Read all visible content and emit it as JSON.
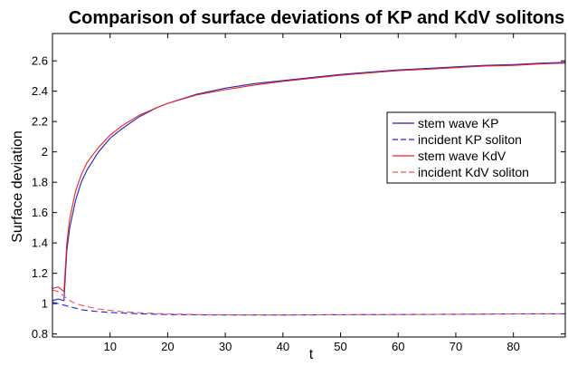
{
  "chart_data": {
    "type": "line",
    "title": "Comparison of surface deviations of KP and KdV solitons",
    "xlabel": "t",
    "ylabel": "Surface deviation",
    "xlim": [
      0,
      89
    ],
    "ylim": [
      0.78,
      2.78
    ],
    "xticks": [
      10,
      20,
      30,
      40,
      50,
      60,
      70,
      80
    ],
    "yticks": [
      0.8,
      1,
      1.2,
      1.4,
      1.6,
      1.8,
      2,
      2.2,
      2.4,
      2.6
    ],
    "grid": false,
    "legend_position": "top-right",
    "series": [
      {
        "name": "stem wave KP",
        "color": "#2222bb",
        "dash": "solid",
        "x": [
          0,
          1,
          2,
          2.5,
          3,
          4,
          5,
          6,
          8,
          10,
          12,
          15,
          18,
          20,
          25,
          30,
          35,
          40,
          45,
          50,
          55,
          60,
          65,
          70,
          75,
          80,
          85,
          89
        ],
        "y": [
          1.02,
          1.03,
          1.02,
          1.35,
          1.5,
          1.68,
          1.8,
          1.88,
          2.0,
          2.09,
          2.15,
          2.23,
          2.29,
          2.32,
          2.38,
          2.42,
          2.45,
          2.47,
          2.49,
          2.51,
          2.525,
          2.54,
          2.55,
          2.56,
          2.57,
          2.575,
          2.585,
          2.59
        ]
      },
      {
        "name": "incident KP soliton",
        "color": "#2222ee",
        "dash": "dashed",
        "x": [
          0,
          1,
          2,
          3,
          4,
          5,
          6,
          8,
          10,
          12,
          15,
          20,
          25,
          30,
          40,
          50,
          60,
          70,
          80,
          89
        ],
        "y": [
          1.01,
          1.0,
          0.99,
          0.98,
          0.97,
          0.96,
          0.955,
          0.947,
          0.942,
          0.938,
          0.933,
          0.928,
          0.926,
          0.925,
          0.925,
          0.927,
          0.928,
          0.93,
          0.932,
          0.933
        ]
      },
      {
        "name": "stem wave KdV",
        "color": "#ee2222",
        "dash": "solid",
        "x": [
          0,
          1,
          2,
          2.5,
          3,
          4,
          5,
          6,
          8,
          10,
          12,
          15,
          18,
          20,
          25,
          30,
          35,
          40,
          45,
          50,
          55,
          60,
          65,
          70,
          75,
          80,
          85,
          89
        ],
        "y": [
          1.1,
          1.11,
          1.08,
          1.4,
          1.56,
          1.74,
          1.85,
          1.93,
          2.03,
          2.11,
          2.17,
          2.24,
          2.29,
          2.32,
          2.375,
          2.41,
          2.44,
          2.465,
          2.485,
          2.505,
          2.52,
          2.535,
          2.545,
          2.555,
          2.565,
          2.57,
          2.58,
          2.585
        ]
      },
      {
        "name": "incident KdV soliton",
        "color": "#ee5555",
        "dash": "dashed",
        "x": [
          0,
          1,
          2,
          3,
          4,
          5,
          6,
          8,
          10,
          12,
          15,
          20,
          25,
          30,
          40,
          50,
          60,
          70,
          80,
          89
        ],
        "y": [
          1.09,
          1.08,
          1.05,
          1.02,
          1.0,
          0.99,
          0.98,
          0.965,
          0.955,
          0.948,
          0.94,
          0.932,
          0.928,
          0.926,
          0.925,
          0.927,
          0.928,
          0.93,
          0.932,
          0.933
        ]
      }
    ]
  }
}
